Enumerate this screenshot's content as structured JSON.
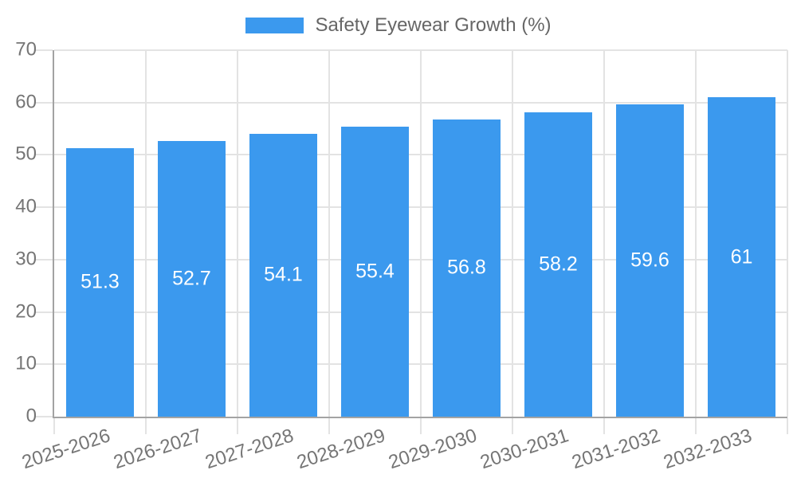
{
  "chart_data": {
    "type": "bar",
    "title": "",
    "legend_label": "Safety Eyewear Growth (%)",
    "legend_position": "top-center",
    "categories": [
      "2025-2026",
      "2026-2027",
      "2027-2028",
      "2028-2029",
      "2029-2030",
      "2030-2031",
      "2031-2032",
      "2032-2033"
    ],
    "values": [
      51.3,
      52.7,
      54.1,
      55.4,
      56.8,
      58.2,
      59.6,
      61
    ],
    "xlabel": "",
    "ylabel": "",
    "ylim": [
      0,
      70
    ],
    "yticks": [
      0,
      10,
      20,
      30,
      40,
      50,
      60,
      70
    ],
    "grid": true,
    "x_tick_rotation_deg": -18,
    "value_label_position": "inside-center",
    "colors": {
      "bar": "#3b99ee",
      "grid_line": "#e3e3e3",
      "axis_line": "#a3a3a3",
      "tick_text": "#757575",
      "legend_text": "#666666",
      "value_text": "#ffffff",
      "background": "#ffffff"
    }
  }
}
